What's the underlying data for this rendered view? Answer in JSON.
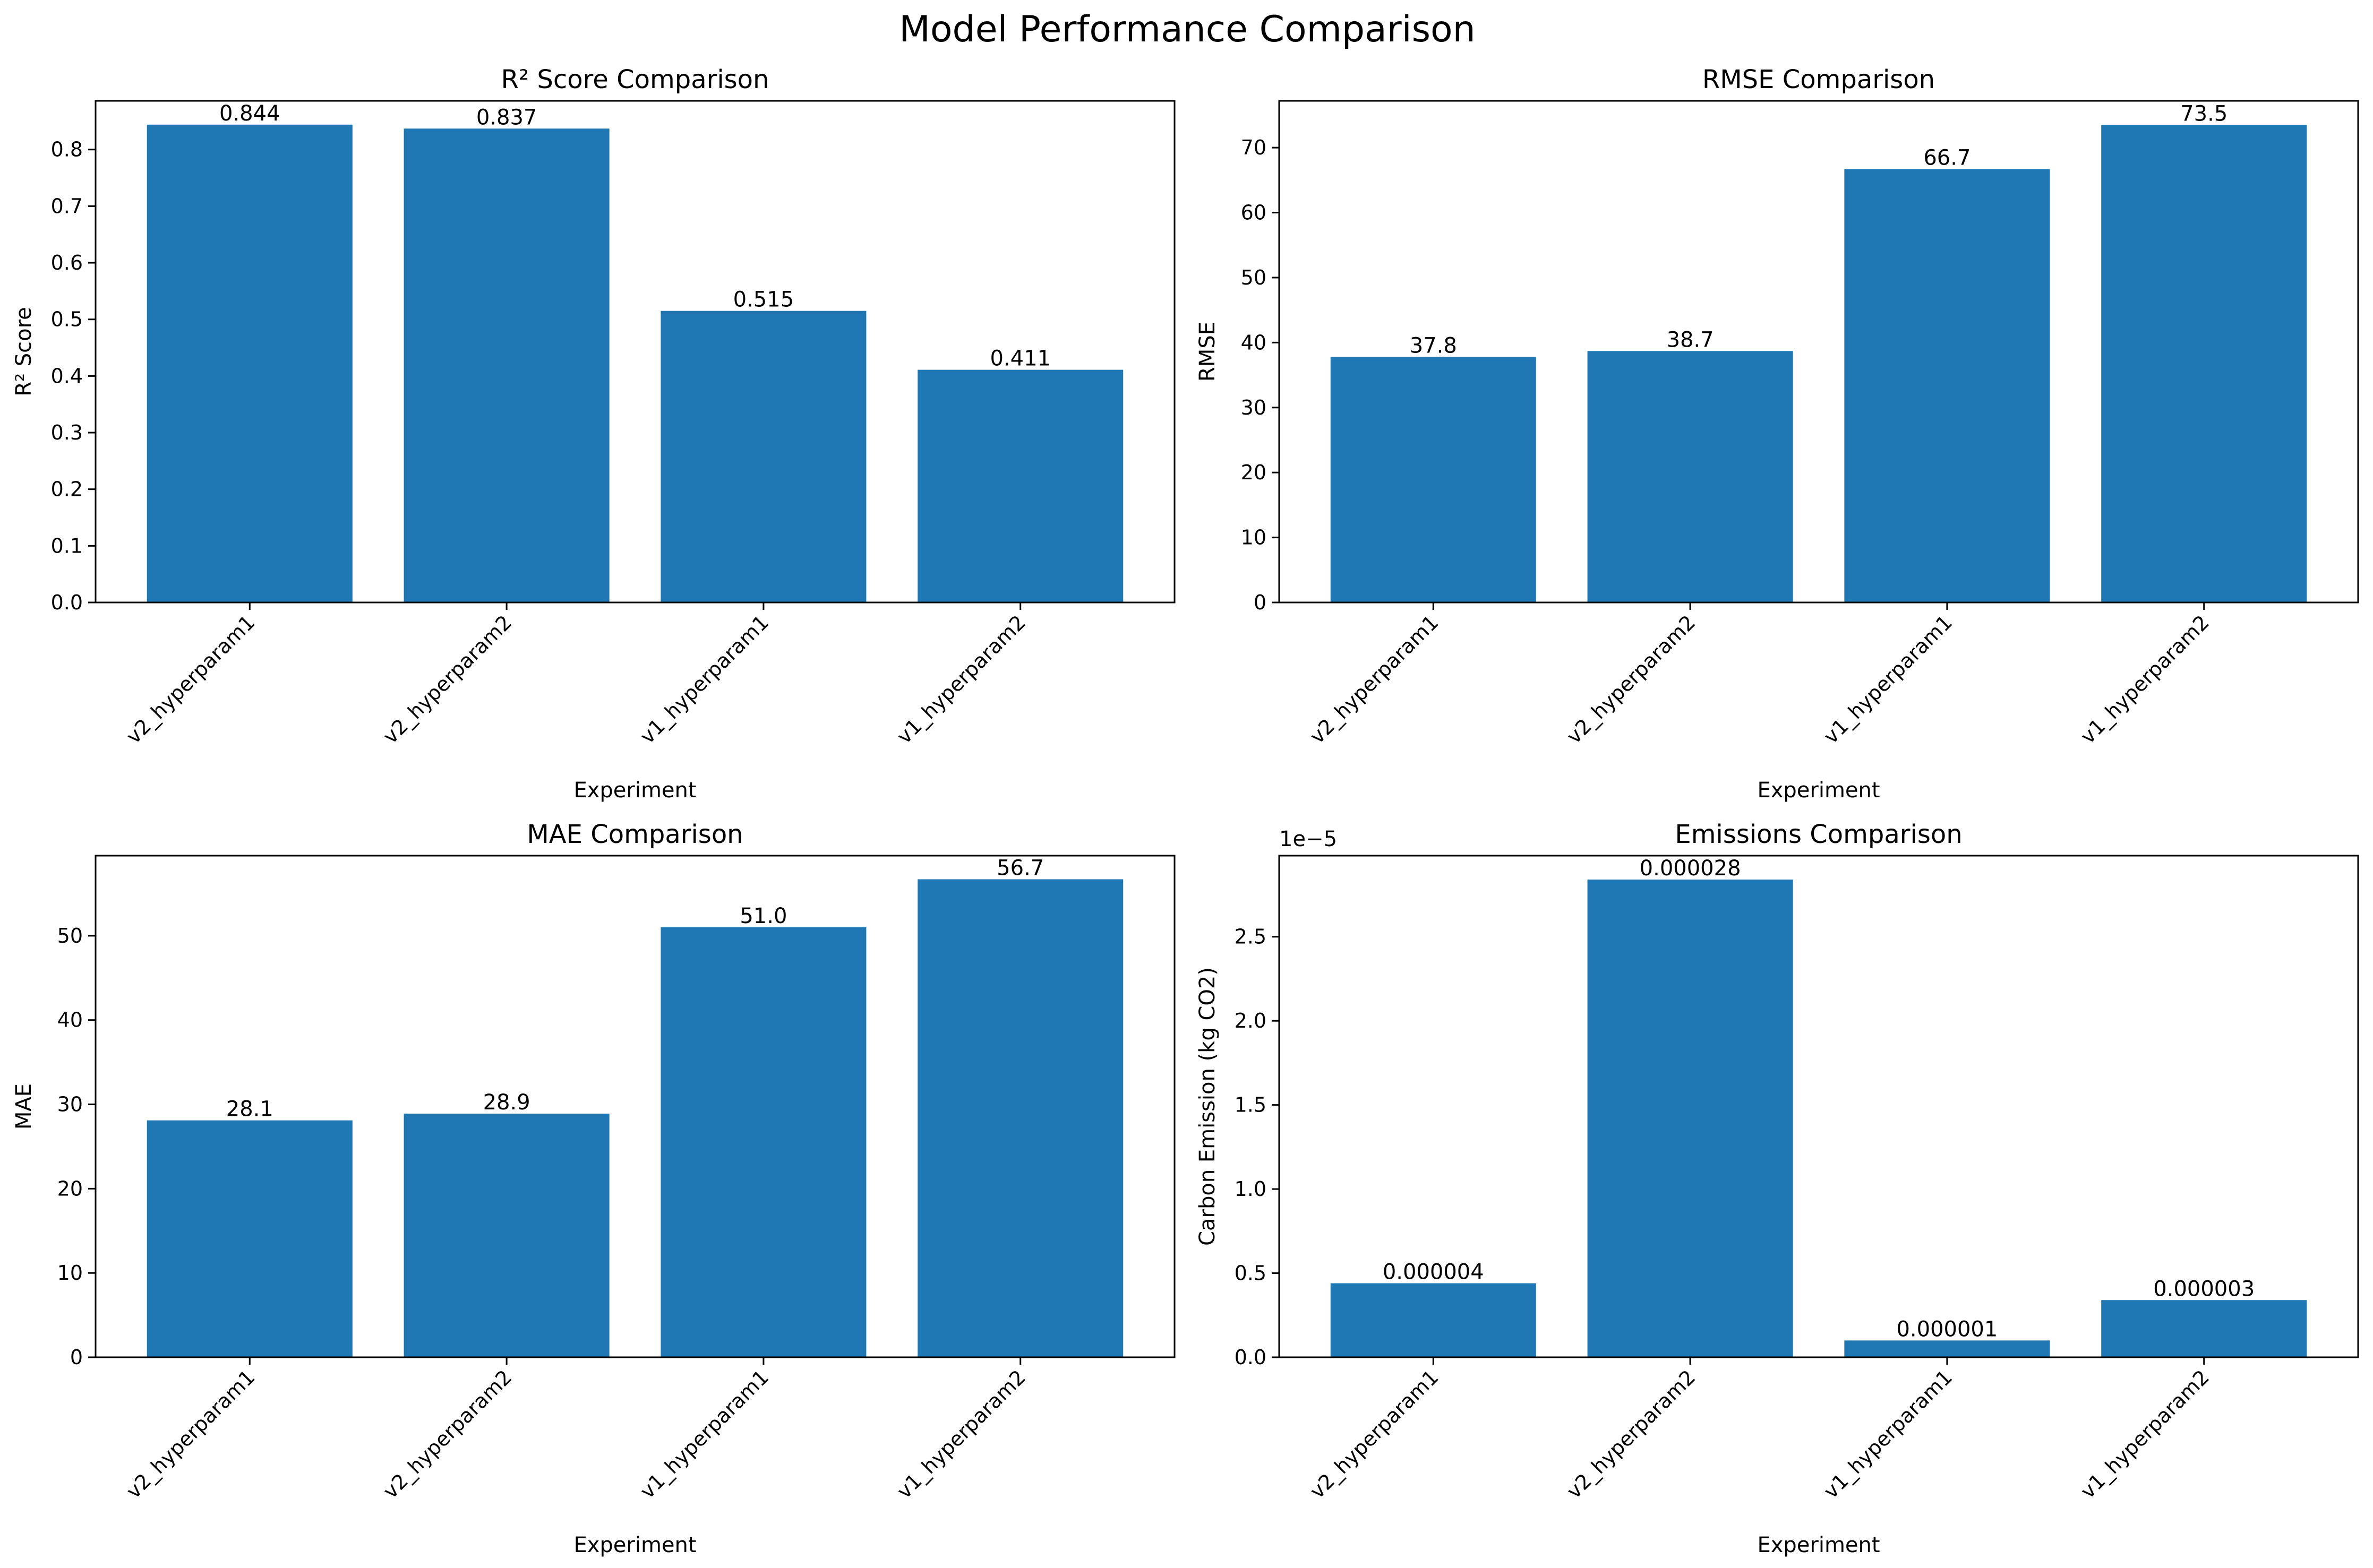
{
  "figure": {
    "title": "Model Performance Comparison"
  },
  "chart_data": [
    {
      "type": "bar",
      "title": "R² Score Comparison",
      "xlabel": "Experiment",
      "ylabel": "R² Score",
      "categories": [
        "v2_hyperparam1",
        "v2_hyperparam2",
        "v1_hyperparam1",
        "v1_hyperparam2"
      ],
      "values": [
        0.844,
        0.837,
        0.515,
        0.411
      ],
      "value_labels": [
        "0.844",
        "0.837",
        "0.515",
        "0.411"
      ],
      "ylim": [
        0,
        0.886
      ],
      "yticks": [
        0,
        0.1,
        0.2,
        0.3,
        0.4,
        0.5,
        0.6,
        0.7,
        0.8
      ],
      "ytick_labels": [
        "0.0",
        "0.1",
        "0.2",
        "0.3",
        "0.4",
        "0.5",
        "0.6",
        "0.7",
        "0.8"
      ],
      "offset_text": "",
      "bar_color": "#1f77b4",
      "grid": false
    },
    {
      "type": "bar",
      "title": "RMSE Comparison",
      "xlabel": "Experiment",
      "ylabel": "RMSE",
      "categories": [
        "v2_hyperparam1",
        "v2_hyperparam2",
        "v1_hyperparam1",
        "v1_hyperparam2"
      ],
      "values": [
        37.8,
        38.7,
        66.7,
        73.5
      ],
      "value_labels": [
        "37.8",
        "38.7",
        "66.7",
        "73.5"
      ],
      "ylim": [
        0,
        77.2
      ],
      "yticks": [
        0,
        10,
        20,
        30,
        40,
        50,
        60,
        70
      ],
      "ytick_labels": [
        "0",
        "10",
        "20",
        "30",
        "40",
        "50",
        "60",
        "70"
      ],
      "offset_text": "",
      "bar_color": "#1f77b4",
      "grid": false
    },
    {
      "type": "bar",
      "title": "MAE Comparison",
      "xlabel": "Experiment",
      "ylabel": "MAE",
      "categories": [
        "v2_hyperparam1",
        "v2_hyperparam2",
        "v1_hyperparam1",
        "v1_hyperparam2"
      ],
      "values": [
        28.1,
        28.9,
        51.0,
        56.7
      ],
      "value_labels": [
        "28.1",
        "28.9",
        "51.0",
        "56.7"
      ],
      "ylim": [
        0,
        59.5
      ],
      "yticks": [
        0,
        10,
        20,
        30,
        40,
        50
      ],
      "ytick_labels": [
        "0",
        "10",
        "20",
        "30",
        "40",
        "50"
      ],
      "offset_text": "",
      "bar_color": "#1f77b4",
      "grid": false
    },
    {
      "type": "bar",
      "title": "Emissions Comparison",
      "xlabel": "Experiment",
      "ylabel": "Carbon Emission (kg CO2)",
      "categories": [
        "v2_hyperparam1",
        "v2_hyperparam2",
        "v1_hyperparam1",
        "v1_hyperparam2"
      ],
      "values": [
        4.4e-06,
        2.84e-05,
        1e-06,
        3.4e-06
      ],
      "value_labels": [
        "0.000004",
        "0.000028",
        "0.000001",
        "0.000003"
      ],
      "ylim": [
        0,
        2.982e-05
      ],
      "yticks": [
        0,
        5e-06,
        1e-05,
        1.5e-05,
        2e-05,
        2.5e-05
      ],
      "ytick_labels": [
        "0.0",
        "0.5",
        "1.0",
        "1.5",
        "2.0",
        "2.5"
      ],
      "offset_text": "1e−5",
      "bar_color": "#1f77b4",
      "grid": false
    }
  ]
}
